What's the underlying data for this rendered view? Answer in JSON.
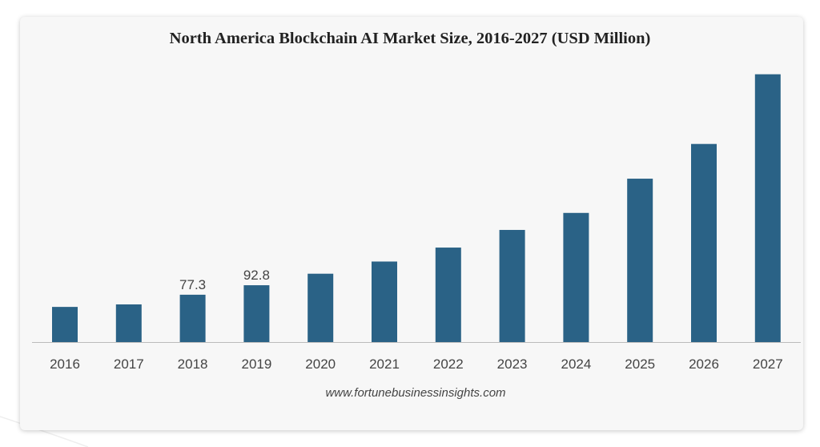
{
  "chart_data": {
    "type": "bar",
    "title": "North America Blockchain AI Market Size, 2016-2027 (USD Million)",
    "categories": [
      "2016",
      "2017",
      "2018",
      "2019",
      "2020",
      "2021",
      "2022",
      "2023",
      "2024",
      "2025",
      "2026",
      "2027"
    ],
    "values": [
      57.4,
      61.5,
      77.3,
      92.8,
      111.6,
      131.5,
      154.3,
      183.1,
      210.9,
      266.8,
      323.5,
      437.3
    ],
    "data_labels": [
      "",
      "",
      "77.3",
      "92.8",
      "",
      "",
      "",
      "",
      "",
      "",
      "",
      ""
    ],
    "xlabel": "",
    "ylabel": "",
    "ylim": [
      0,
      450
    ],
    "grid": false,
    "legend": "none",
    "bar_color": "#2a6286"
  },
  "source": "www.fortunebusinessinsights.com",
  "colors": {
    "card_background": "#f7f7f7",
    "axis": "#bbbbbb"
  }
}
